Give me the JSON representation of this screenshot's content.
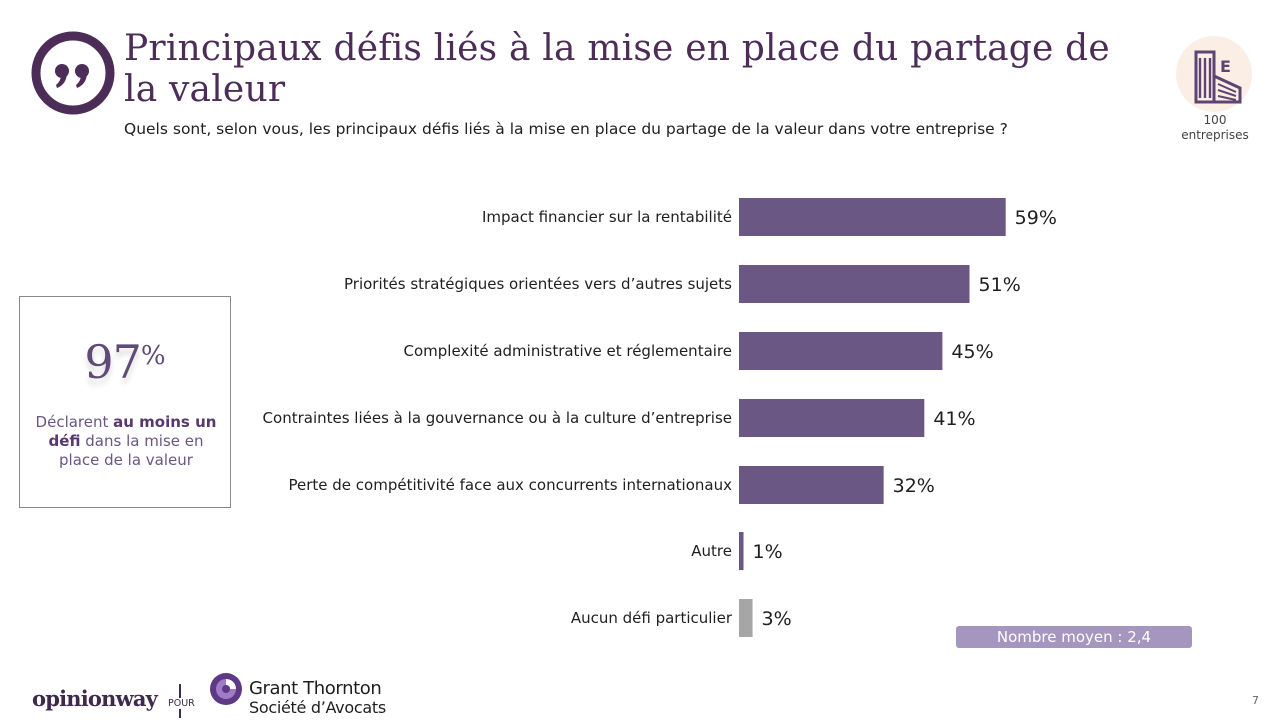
{
  "header": {
    "title": "Principaux défis liés à la mise en place du partage de la valeur",
    "subtitle": "Quels sont, selon vous, les principaux défis liés à la mise en place du partage de la valeur dans votre entreprise ?",
    "quote_icon": "quote-icon"
  },
  "sample": {
    "icon": "building-icon",
    "count": "100",
    "label": "entreprises"
  },
  "highlight": {
    "value": "97",
    "unit": "%",
    "text_pre": "Déclarent ",
    "text_bold": "au moins un défi",
    "text_post": " dans la mise en place de la valeur"
  },
  "average_badge": "Nombre moyen : 2,4",
  "colors": {
    "bar": "#6b5783",
    "bar_muted": "#a6a6a6",
    "accent": "#4c2d58",
    "badge": "#a596bf"
  },
  "chart_data": {
    "type": "bar",
    "orientation": "horizontal",
    "categories": [
      "Impact financier sur la rentabilité",
      "Priorités stratégiques orientées vers d’autres sujets",
      "Complexité administrative et réglementaire",
      "Contraintes liées à la gouvernance ou à la culture d’entreprise",
      "Perte de compétitivité face aux concurrents internationaux",
      "Autre",
      "Aucun défi particulier"
    ],
    "values": [
      59,
      51,
      45,
      41,
      32,
      1,
      3
    ],
    "value_labels": [
      "59%",
      "51%",
      "45%",
      "41%",
      "32%",
      "1%",
      "3%"
    ],
    "highlight": [
      false,
      false,
      false,
      false,
      false,
      false,
      true
    ],
    "unit": "%",
    "xlim": [
      0,
      100
    ]
  },
  "footer": {
    "brand": "opinionway",
    "pour": "POUR",
    "partner_name": "Grant Thornton",
    "partner_sub": "Société d’Avocats",
    "page": "7"
  }
}
